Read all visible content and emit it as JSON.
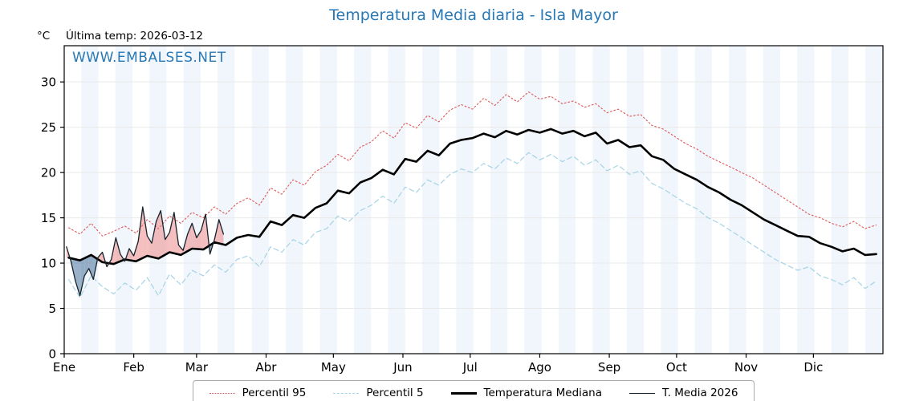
{
  "header": {
    "title": "Temperatura Media diaria - Isla Mayor",
    "units_label": "°C",
    "last_temp_label": "Última temp: 2026-03-12",
    "watermark": "WWW.EMBALSES.NET"
  },
  "colors": {
    "title": "#2878b4",
    "watermark": "#2878b4",
    "axis": "#000000",
    "gridline": "#e9e9e9",
    "month_band": "#e3eef7"
  },
  "chart_data": {
    "type": "line",
    "title": "Temperatura Media diaria - Isla Mayor",
    "xlabel": "",
    "ylabel": "°C",
    "x_unit": "day_of_year",
    "xlim": [
      0,
      365
    ],
    "ylim": [
      0,
      34
    ],
    "y_ticks": [
      0,
      5,
      10,
      15,
      20,
      25,
      30
    ],
    "x_tick_days": [
      0,
      31,
      59,
      90,
      120,
      151,
      181,
      212,
      243,
      273,
      304,
      334
    ],
    "x_tick_labels": [
      "Ene",
      "Feb",
      "Mar",
      "Abr",
      "May",
      "Jun",
      "Jul",
      "Ago",
      "Sep",
      "Oct",
      "Nov",
      "Dic"
    ],
    "grid": true,
    "legend_position": "bottom",
    "x_common": [
      2,
      7,
      12,
      17,
      22,
      27,
      32,
      37,
      42,
      47,
      52,
      57,
      62,
      67,
      72,
      77,
      82,
      87,
      92,
      97,
      102,
      107,
      112,
      117,
      122,
      127,
      132,
      137,
      142,
      147,
      152,
      157,
      162,
      167,
      172,
      177,
      182,
      187,
      192,
      197,
      202,
      207,
      212,
      217,
      222,
      227,
      232,
      237,
      242,
      247,
      252,
      257,
      262,
      267,
      272,
      277,
      282,
      287,
      292,
      297,
      302,
      307,
      312,
      317,
      322,
      327,
      332,
      337,
      342,
      347,
      352,
      357,
      362
    ],
    "series": [
      {
        "name": "Percentil 95",
        "color": "#dd5858",
        "style": "dotted",
        "width": 1.1,
        "y": [
          13.9,
          13.2,
          14.4,
          13.0,
          13.5,
          14.1,
          13.3,
          14.8,
          13.8,
          15.2,
          14.4,
          15.6,
          15.0,
          16.2,
          15.4,
          16.6,
          17.2,
          16.4,
          18.3,
          17.6,
          19.2,
          18.6,
          20.1,
          20.8,
          22.0,
          21.3,
          22.8,
          23.4,
          24.6,
          23.8,
          25.5,
          24.9,
          26.3,
          25.6,
          26.9,
          27.5,
          27.0,
          28.2,
          27.4,
          28.6,
          27.8,
          28.9,
          28.1,
          28.4,
          27.6,
          27.9,
          27.2,
          27.6,
          26.6,
          27.0,
          26.2,
          26.4,
          25.2,
          24.8,
          24.0,
          23.2,
          22.6,
          21.8,
          21.2,
          20.6,
          20.0,
          19.4,
          18.6,
          17.8,
          17.0,
          16.2,
          15.4,
          15.0,
          14.4,
          14.0,
          14.6,
          13.8,
          14.2
        ]
      },
      {
        "name": "Percentil 5",
        "color": "#a6d3e6",
        "style": "dashed",
        "width": 1.2,
        "y": [
          8.2,
          6.2,
          8.6,
          7.4,
          6.6,
          7.8,
          7.0,
          8.4,
          6.4,
          8.8,
          7.6,
          9.2,
          8.6,
          9.8,
          9.0,
          10.4,
          10.8,
          9.6,
          11.8,
          11.2,
          12.6,
          12.0,
          13.4,
          13.8,
          15.2,
          14.6,
          15.8,
          16.4,
          17.4,
          16.6,
          18.4,
          17.8,
          19.2,
          18.6,
          19.8,
          20.4,
          20.0,
          21.0,
          20.4,
          21.6,
          21.0,
          22.2,
          21.4,
          22.0,
          21.2,
          21.8,
          20.8,
          21.4,
          20.2,
          20.8,
          19.8,
          20.2,
          18.8,
          18.2,
          17.4,
          16.6,
          16.0,
          15.0,
          14.4,
          13.6,
          12.8,
          12.0,
          11.2,
          10.4,
          9.8,
          9.2,
          9.6,
          8.6,
          8.2,
          7.6,
          8.4,
          7.2,
          8.0
        ]
      },
      {
        "name": "Temperatura Mediana",
        "color": "#000000",
        "style": "solid",
        "width": 2.6,
        "y": [
          10.6,
          10.3,
          10.9,
          10.1,
          9.9,
          10.4,
          10.2,
          10.8,
          10.5,
          11.2,
          10.9,
          11.6,
          11.5,
          12.3,
          12.0,
          12.8,
          13.1,
          12.9,
          14.6,
          14.2,
          15.3,
          15.0,
          16.1,
          16.6,
          18.0,
          17.7,
          18.9,
          19.4,
          20.3,
          19.8,
          21.5,
          21.2,
          22.4,
          21.9,
          23.2,
          23.6,
          23.8,
          24.3,
          23.9,
          24.6,
          24.2,
          24.7,
          24.4,
          24.8,
          24.3,
          24.6,
          24.0,
          24.4,
          23.2,
          23.6,
          22.8,
          23.0,
          21.8,
          21.4,
          20.4,
          19.8,
          19.2,
          18.4,
          17.8,
          17.0,
          16.4,
          15.6,
          14.8,
          14.2,
          13.6,
          13.0,
          12.9,
          12.2,
          11.8,
          11.3,
          11.6,
          10.9,
          11.0
        ]
      },
      {
        "name": "T. Media 2026",
        "color": "#16222c",
        "style": "solid",
        "width": 1.3,
        "x": [
          1,
          3,
          5,
          7,
          9,
          11,
          13,
          15,
          17,
          19,
          21,
          23,
          25,
          27,
          29,
          31,
          33,
          35,
          37,
          39,
          41,
          43,
          45,
          47,
          49,
          51,
          53,
          55,
          57,
          59,
          61,
          63,
          65,
          67,
          69,
          71
        ],
        "y": [
          11.8,
          10.2,
          8.0,
          6.4,
          8.6,
          9.4,
          8.2,
          10.6,
          11.2,
          9.6,
          10.4,
          12.8,
          11.0,
          10.2,
          11.6,
          10.8,
          12.4,
          16.2,
          13.0,
          12.2,
          14.6,
          15.8,
          12.6,
          13.4,
          15.6,
          12.0,
          11.4,
          13.2,
          14.4,
          12.8,
          13.6,
          15.4,
          11.0,
          12.6,
          14.8,
          13.2
        ]
      }
    ],
    "fill_between": {
      "series_a": "T. Media 2026",
      "series_b": "Temperatura Mediana",
      "above_color": "rgba(238,128,128,0.5)",
      "below_color": "rgba(85,125,165,0.6)"
    }
  }
}
